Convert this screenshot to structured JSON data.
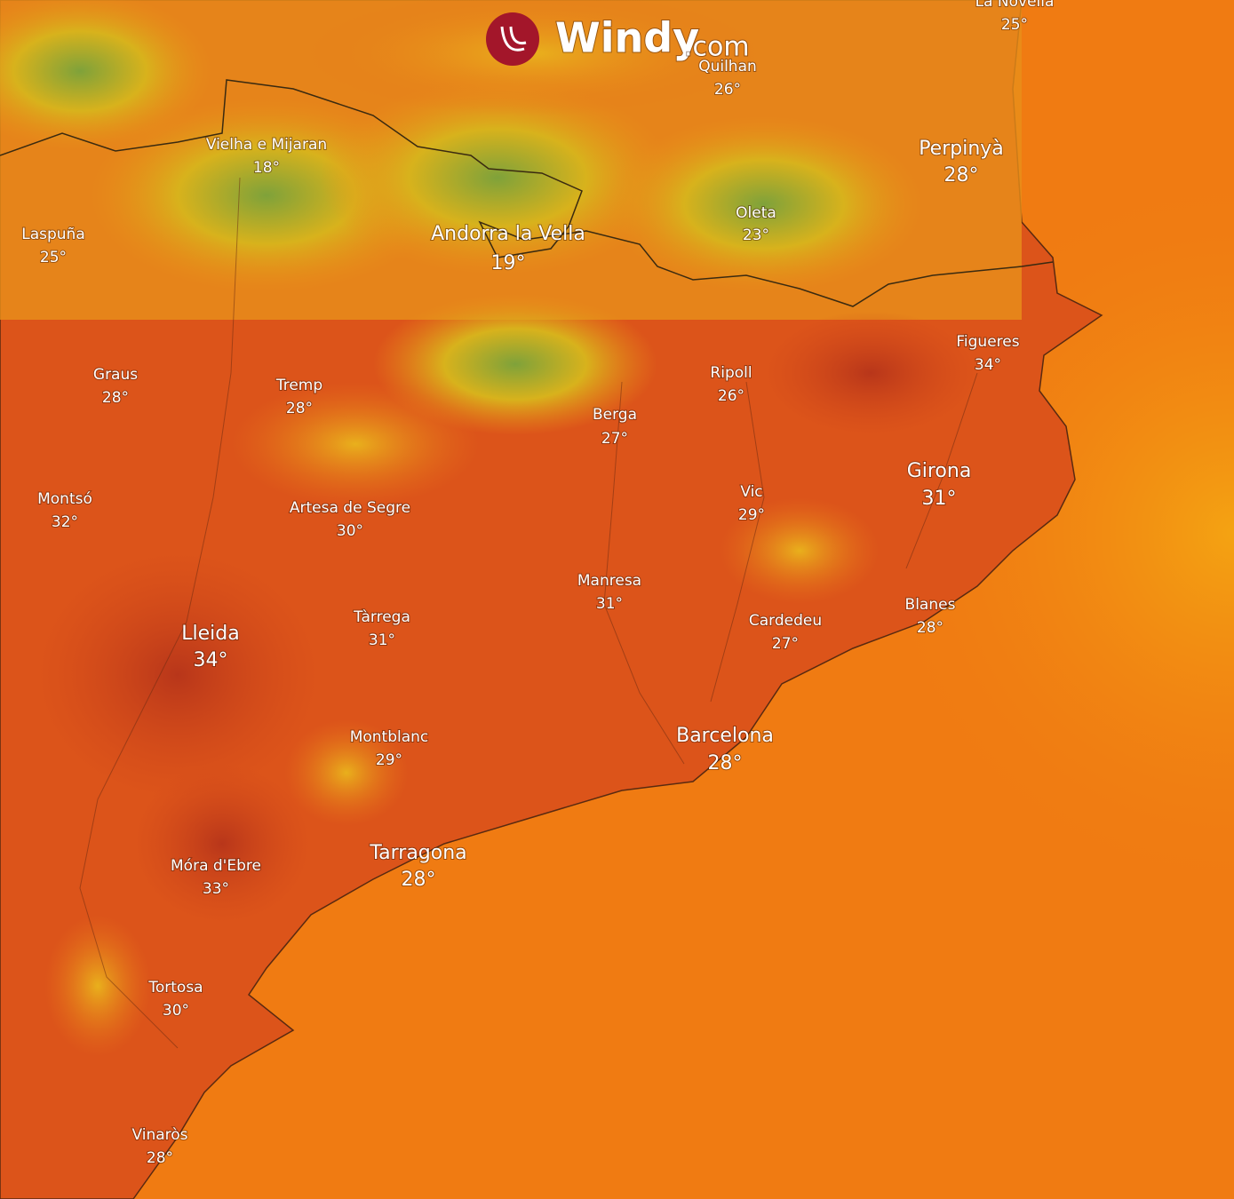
{
  "logo": {
    "name": "Windy",
    "suffix": ".com"
  },
  "places": [
    {
      "name": "La Novella",
      "temperature": "25°"
    },
    {
      "name": "Quilhan",
      "temperature": "26°"
    },
    {
      "name": "Perpinyà",
      "temperature": "28°"
    },
    {
      "name": "Vielha e Mijaran",
      "temperature": "18°"
    },
    {
      "name": "Laspuña",
      "temperature": "25°"
    },
    {
      "name": "Andorra la Vella",
      "temperature": "19°"
    },
    {
      "name": "Oleta",
      "temperature": "23°"
    },
    {
      "name": "Figueres",
      "temperature": "34°"
    },
    {
      "name": "Graus",
      "temperature": "28°"
    },
    {
      "name": "Tremp",
      "temperature": "28°"
    },
    {
      "name": "Ripoll",
      "temperature": "26°"
    },
    {
      "name": "Berga",
      "temperature": "27°"
    },
    {
      "name": "Girona",
      "temperature": "31°"
    },
    {
      "name": "Montsó",
      "temperature": "32°"
    },
    {
      "name": "Artesa de Segre",
      "temperature": "30°"
    },
    {
      "name": "Vic",
      "temperature": "29°"
    },
    {
      "name": "Manresa",
      "temperature": "31°"
    },
    {
      "name": "Tàrrega",
      "temperature": "31°"
    },
    {
      "name": "Cardedeu",
      "temperature": "27°"
    },
    {
      "name": "Blanes",
      "temperature": "28°"
    },
    {
      "name": "Lleida",
      "temperature": "34°"
    },
    {
      "name": "Montblanc",
      "temperature": "29°"
    },
    {
      "name": "Barcelona",
      "temperature": "28°"
    },
    {
      "name": "Tarragona",
      "temperature": "28°"
    },
    {
      "name": "Móra d'Ebre",
      "temperature": "33°"
    },
    {
      "name": "Tortosa",
      "temperature": "30°"
    },
    {
      "name": "Vinaròs",
      "temperature": "28°"
    }
  ]
}
